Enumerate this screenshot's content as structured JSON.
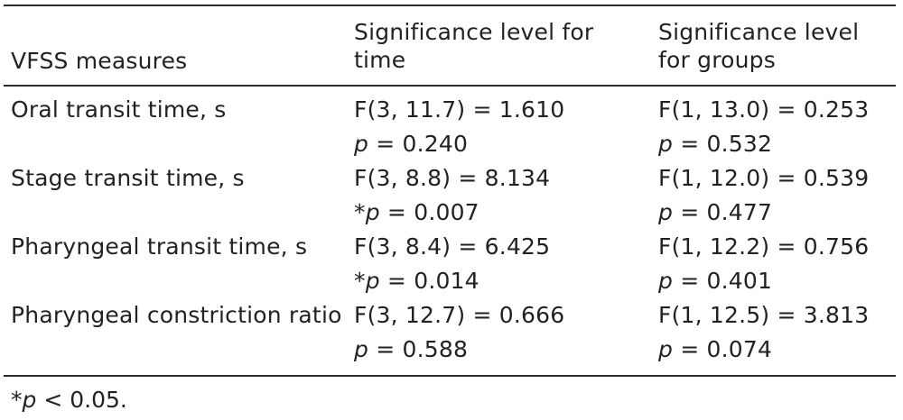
{
  "table": {
    "headers": [
      "VFSS measures",
      "Significance level for time",
      "Significance level for groups"
    ],
    "rows": [
      {
        "measure": "Oral transit time, s",
        "time_f": "F(3, 11.7) = 1.610",
        "time_p": "p = 0.240",
        "group_f": "F(1, 13.0) = 0.253",
        "group_p": "p = 0.532"
      },
      {
        "measure": "Stage transit time, s",
        "time_f": "F(3, 8.8) = 8.134",
        "time_p": "*p = 0.007",
        "group_f": "F(1, 12.0) = 0.539",
        "group_p": "p = 0.477"
      },
      {
        "measure": "Pharyngeal transit time, s",
        "time_f": "F(3, 8.4) = 6.425",
        "time_p": "*p = 0.014",
        "group_f": "F(1, 12.2) = 0.756",
        "group_p": "p = 0.401"
      },
      {
        "measure": "Pharyngeal constriction ratio",
        "time_f": "F(3, 12.7) = 0.666",
        "time_p": "p = 0.588",
        "group_f": "F(1, 12.5) = 3.813",
        "group_p": "p = 0.074"
      }
    ]
  },
  "footnote": "*p < 0.05."
}
